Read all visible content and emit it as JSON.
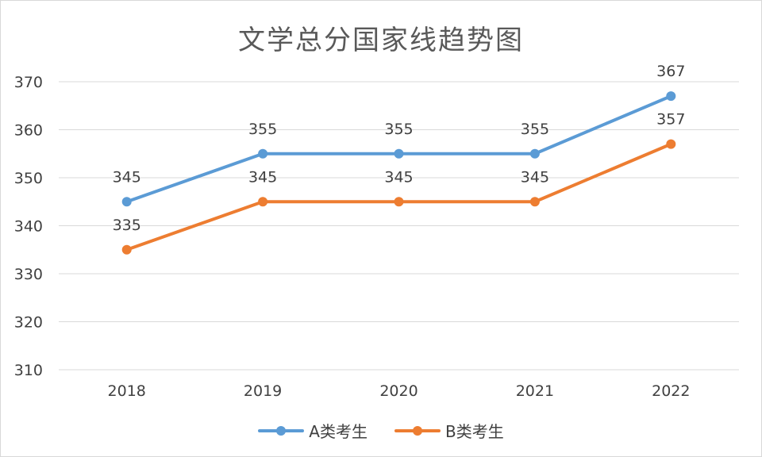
{
  "chart_data": {
    "type": "line",
    "title": "文学总分国家线趋势图",
    "categories": [
      "2018",
      "2019",
      "2020",
      "2021",
      "2022"
    ],
    "series": [
      {
        "name": "A类考生",
        "values": [
          345,
          355,
          355,
          355,
          367
        ],
        "color": "#5b9bd5"
      },
      {
        "name": "B类考生",
        "values": [
          335,
          345,
          345,
          345,
          357
        ],
        "color": "#ed7d31"
      }
    ],
    "yticks": [
      310,
      320,
      330,
      340,
      350,
      360,
      370
    ],
    "ylim": [
      310,
      370
    ],
    "xlabel": "",
    "ylabel": "",
    "grid": true,
    "legend": "bottom",
    "data_labels": "above"
  }
}
